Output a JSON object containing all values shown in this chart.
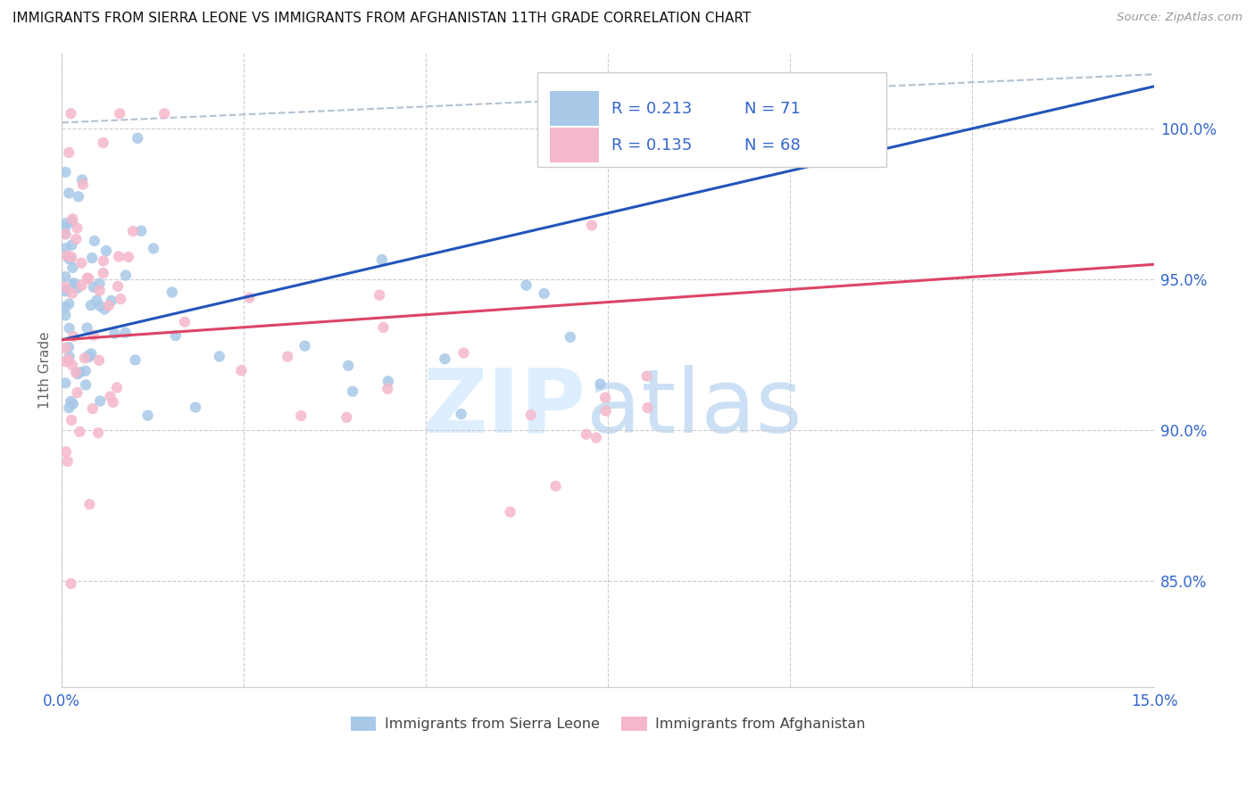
{
  "title": "IMMIGRANTS FROM SIERRA LEONE VS IMMIGRANTS FROM AFGHANISTAN 11TH GRADE CORRELATION CHART",
  "source": "Source: ZipAtlas.com",
  "ylabel": "11th Grade",
  "xmin": 0.0,
  "xmax": 15.0,
  "ymin": 81.5,
  "ymax": 102.5,
  "yticks": [
    85.0,
    90.0,
    95.0,
    100.0
  ],
  "xticks": [
    0.0,
    2.5,
    5.0,
    7.5,
    10.0,
    12.5,
    15.0
  ],
  "legend_label1": "Immigrants from Sierra Leone",
  "legend_label2": "Immigrants from Afghanistan",
  "blue_color": "#a8c8e8",
  "pink_color": "#f5b8cb",
  "blue_line_color": "#2255bb",
  "pink_line_color": "#dd4466",
  "axis_label_color": "#3366cc",
  "ref_line_color": "#aabbcc",
  "grid_color": "#cccccc",
  "sl_line_x0": 0.0,
  "sl_line_y0": 93.0,
  "sl_line_x1": 7.5,
  "sl_line_y1": 97.2,
  "af_line_x0": 0.0,
  "af_line_y0": 93.0,
  "af_line_x1": 15.0,
  "af_line_y1": 95.5,
  "ref_line_x0": 0.0,
  "ref_line_y0": 100.2,
  "ref_line_x1": 15.0,
  "ref_line_y1": 101.8
}
